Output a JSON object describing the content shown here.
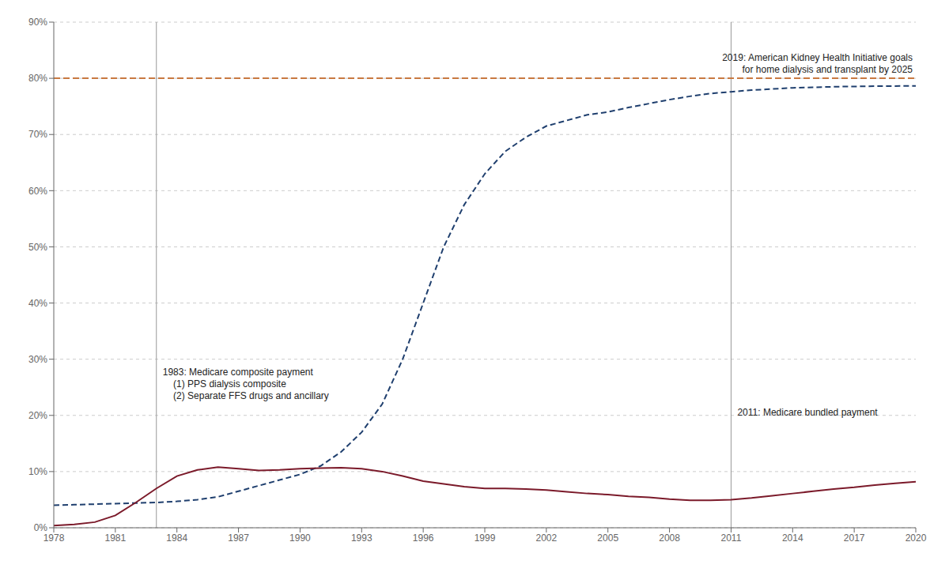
{
  "chart_data": {
    "type": "line",
    "x": [
      1978,
      1979,
      1980,
      1981,
      1982,
      1983,
      1984,
      1985,
      1986,
      1987,
      1988,
      1989,
      1990,
      1991,
      1992,
      1993,
      1994,
      1995,
      1996,
      1997,
      1998,
      1999,
      2000,
      2001,
      2002,
      2003,
      2004,
      2005,
      2006,
      2007,
      2008,
      2009,
      2010,
      2011,
      2012,
      2013,
      2014,
      2015,
      2016,
      2017,
      2018,
      2019,
      2020
    ],
    "series": [
      {
        "color": "#1f3f6e",
        "line_style": "dashed",
        "values": [
          4.0,
          4.1,
          4.2,
          4.3,
          4.4,
          4.5,
          4.7,
          5.0,
          5.5,
          6.5,
          7.5,
          8.5,
          9.5,
          11.0,
          13.5,
          17.0,
          22.0,
          30.0,
          40.0,
          50.0,
          57.5,
          63.0,
          67.0,
          69.5,
          71.5,
          72.5,
          73.5,
          74.0,
          74.8,
          75.5,
          76.2,
          76.8,
          77.3,
          77.6,
          77.9,
          78.1,
          78.3,
          78.4,
          78.5,
          78.55,
          78.6,
          78.62,
          78.65
        ]
      },
      {
        "color": "#7b1a2a",
        "line_style": "solid",
        "values": [
          0.4,
          0.6,
          1.0,
          2.2,
          4.5,
          7.0,
          9.2,
          10.3,
          10.8,
          10.5,
          10.2,
          10.3,
          10.5,
          10.6,
          10.7,
          10.5,
          10.0,
          9.2,
          8.3,
          7.8,
          7.3,
          7.0,
          7.0,
          6.9,
          6.7,
          6.4,
          6.1,
          5.9,
          5.6,
          5.4,
          5.1,
          4.9,
          4.9,
          5.0,
          5.3,
          5.7,
          6.1,
          6.5,
          6.9,
          7.2,
          7.6,
          7.9,
          8.2
        ]
      }
    ],
    "xlim": [
      1978,
      2020
    ],
    "xticks": [
      1978,
      1981,
      1984,
      1987,
      1990,
      1993,
      1996,
      1999,
      2002,
      2005,
      2008,
      2011,
      2014,
      2017,
      2020
    ],
    "ylim": [
      0,
      90
    ],
    "yticks": [
      {
        "value": 0,
        "label": "0%"
      },
      {
        "value": 10,
        "label": "10%"
      },
      {
        "value": 20,
        "label": "20%"
      },
      {
        "value": 30,
        "label": "30%"
      },
      {
        "value": 40,
        "label": "40%"
      },
      {
        "value": 50,
        "label": "50%"
      },
      {
        "value": 60,
        "label": "60%"
      },
      {
        "value": 70,
        "label": "70%"
      },
      {
        "value": 80,
        "label": "80%"
      },
      {
        "value": 90,
        "label": "90%"
      }
    ],
    "grid": "y",
    "hlines": [
      {
        "y": 80,
        "color": "#c87941",
        "line_style": "dashed",
        "annotation": [
          "2019: American Kidney Health Initiative goals",
          "for home dialysis and transplant by 2025"
        ]
      }
    ],
    "vlines": [
      {
        "x": 1983,
        "annotation": [
          "1983: Medicare composite payment",
          "    (1) PPS dialysis composite",
          "    (2) Separate FFS drugs and ancillary"
        ]
      },
      {
        "x": 2011,
        "annotation": [
          "2011: Medicare bundled payment"
        ]
      }
    ]
  }
}
